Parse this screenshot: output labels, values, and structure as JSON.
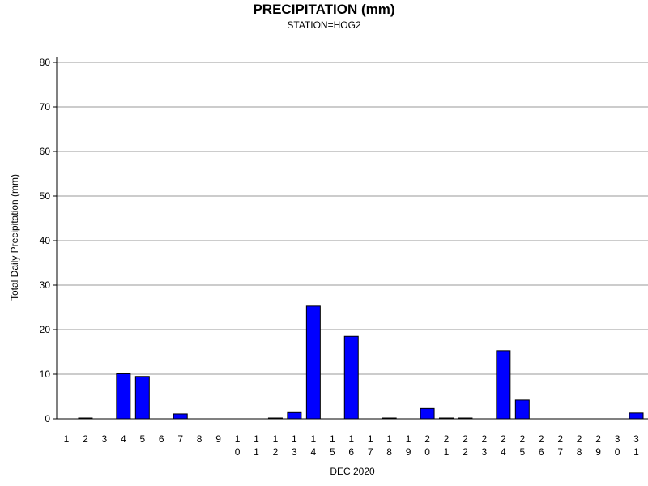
{
  "chart_data": {
    "type": "bar",
    "title": "PRECIPITATION (mm)",
    "subtitle": "STATION=HOG2",
    "xlabel": "DEC 2020",
    "ylabel": "Total Daily Precipitation (mm)",
    "ylim": [
      0,
      80
    ],
    "yticks": [
      0,
      10,
      20,
      30,
      40,
      50,
      60,
      70,
      80
    ],
    "grid": true,
    "bar_color": "#0000ff",
    "categories": [
      "1",
      "2",
      "3",
      "4",
      "5",
      "6",
      "7",
      "8",
      "9",
      "10",
      "11",
      "12",
      "13",
      "14",
      "15",
      "16",
      "17",
      "18",
      "19",
      "20",
      "21",
      "22",
      "23",
      "24",
      "25",
      "26",
      "27",
      "28",
      "29",
      "30",
      "31"
    ],
    "values": [
      0,
      0.1,
      0,
      10.1,
      9.5,
      0,
      1.1,
      0,
      0,
      0,
      0,
      0.1,
      1.4,
      25.3,
      0,
      18.5,
      0,
      0.1,
      0,
      2.3,
      0.1,
      0.1,
      0,
      15.3,
      4.2,
      0,
      0,
      0,
      0,
      0,
      1.3
    ]
  }
}
